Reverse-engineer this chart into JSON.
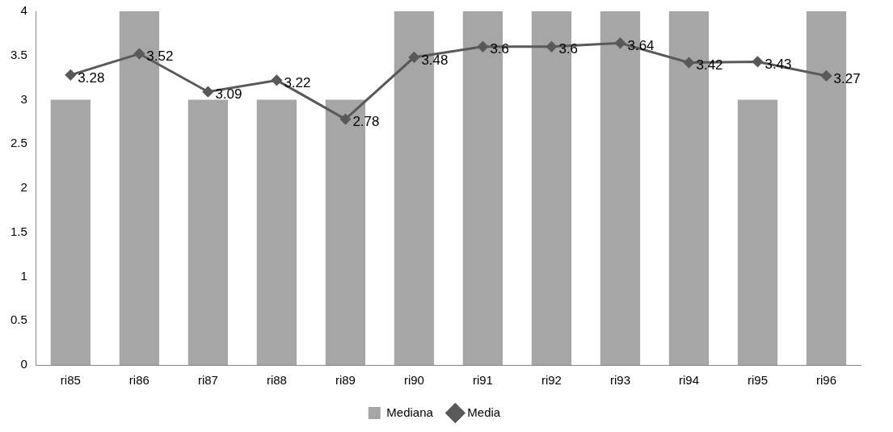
{
  "chart_data": {
    "type": "bar",
    "categories": [
      "ri85",
      "ri86",
      "ri87",
      "ri88",
      "ri89",
      "ri90",
      "ri91",
      "ri92",
      "ri93",
      "ri94",
      "ri95",
      "ri96"
    ],
    "series": [
      {
        "name": "Mediana",
        "color": "#a6a6a6",
        "values": [
          3,
          4,
          3,
          3,
          3,
          4,
          4,
          4,
          4,
          4,
          3,
          4
        ]
      },
      {
        "name": "Media",
        "type": "line",
        "color": "#595959",
        "marker": "diamond",
        "values": [
          3.28,
          3.52,
          3.09,
          3.22,
          2.78,
          3.48,
          3.6,
          3.6,
          3.64,
          3.42,
          3.43,
          3.27
        ],
        "value_labels": [
          "3.28",
          "3.52",
          "3.09",
          "3.22",
          "2.78",
          "3.48",
          "3.6",
          "3.6",
          "3.64",
          "3.42",
          "3.43",
          "3.27"
        ]
      }
    ],
    "ylim": [
      0,
      4
    ],
    "yticks": [
      0,
      0.5,
      1,
      1.5,
      2,
      2.5,
      3,
      3.5,
      4
    ],
    "grid": false,
    "legend": "bottom"
  }
}
